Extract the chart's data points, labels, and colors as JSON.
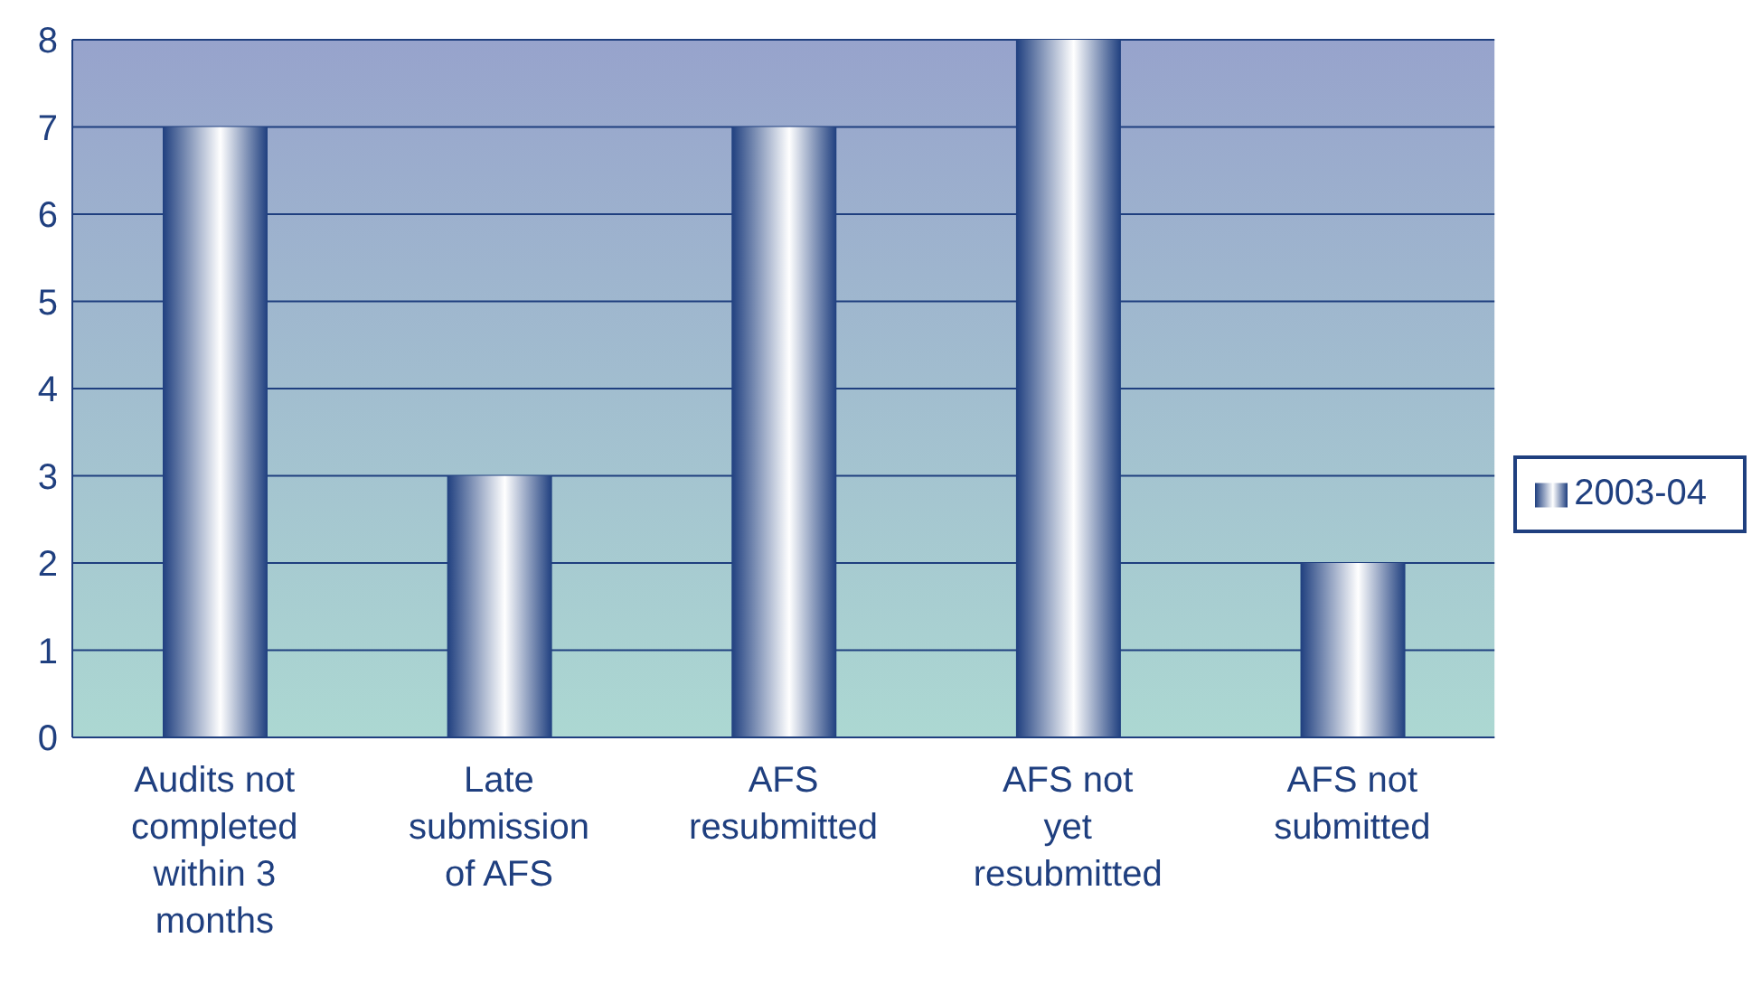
{
  "chart_data": {
    "type": "bar",
    "categories": [
      "Audits not completed within 3 months",
      "Late submission of AFS",
      "AFS resubmitted",
      "AFS not yet resubmitted",
      "AFS not submitted"
    ],
    "series": [
      {
        "name": "2003-04",
        "color": "#1f3f7f",
        "values": [
          7,
          3,
          7,
          8,
          2
        ]
      }
    ],
    "ylim": [
      0,
      8
    ],
    "yticks": [
      0,
      1,
      2,
      3,
      4,
      5,
      6,
      7,
      8
    ],
    "grid": "y",
    "legend": "right"
  }
}
